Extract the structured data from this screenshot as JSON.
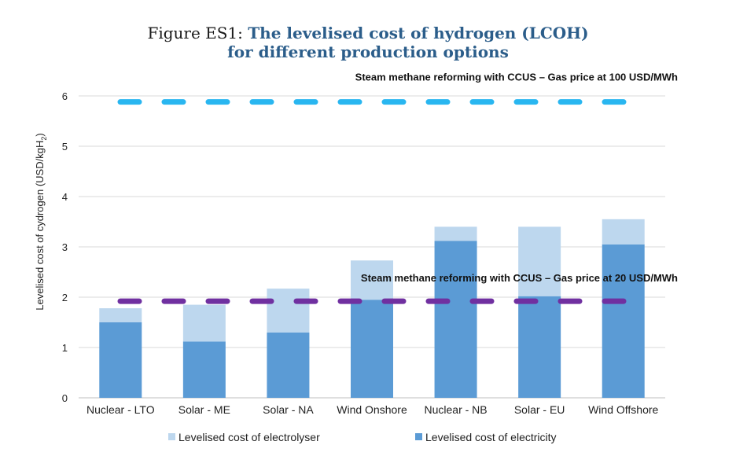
{
  "figure": {
    "label": "Figure ES1:",
    "title_line1": "The levelised cost of hydrogen (LCOH)",
    "title_line2": "for different production options"
  },
  "chart_data": {
    "type": "bar",
    "stacked": true,
    "categories": [
      "Nuclear - LTO",
      "Solar - ME",
      "Solar - NA",
      "Wind Onshore",
      "Nuclear - NB",
      "Solar - EU",
      "Wind Offshore"
    ],
    "series": [
      {
        "name": "Levelised cost of electricity",
        "color": "#5b9bd5",
        "values": [
          1.5,
          1.12,
          1.3,
          1.95,
          3.12,
          2.02,
          3.05
        ]
      },
      {
        "name": "Levelised cost of electrolyser",
        "color": "#bdd7ee",
        "values": [
          0.28,
          0.73,
          0.87,
          0.78,
          0.28,
          1.38,
          0.5
        ]
      }
    ],
    "reference_lines": [
      {
        "label": "Steam methane reforming with CCUS – Gas price at 100 USD/MWh",
        "value": 5.88,
        "color": "#29b6f0"
      },
      {
        "label": "Steam methane reforming with CCUS – Gas price at 20 USD/MWh",
        "value": 1.92,
        "color": "#7030a0"
      }
    ],
    "ylabel": "Levelised cost of cydrogen (USD/kgH",
    "ylabel_sub": "2",
    "ylabel_end": ")",
    "ylim": [
      0,
      6
    ],
    "yticks": [
      0,
      1,
      2,
      3,
      4,
      5,
      6
    ],
    "grid": true,
    "legend_position": "bottom"
  }
}
